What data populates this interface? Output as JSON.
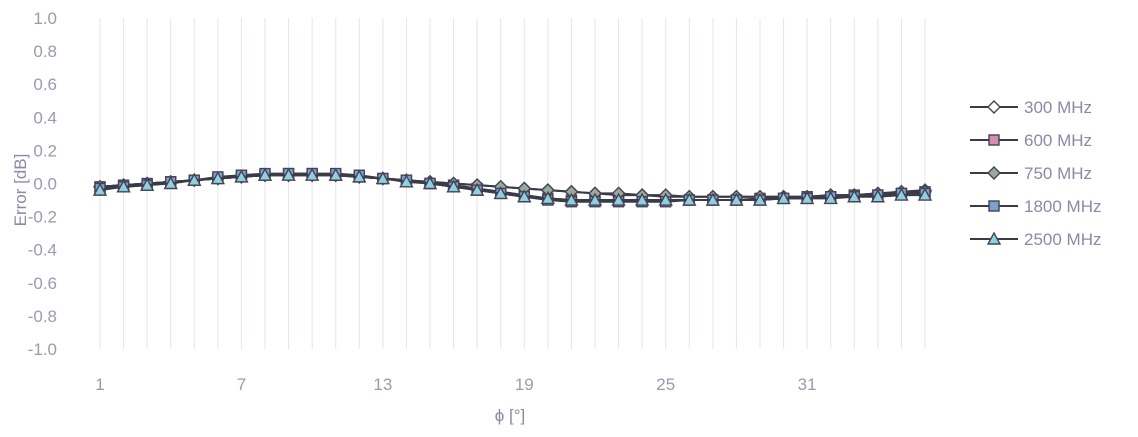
{
  "chart_data": {
    "type": "line",
    "title": "",
    "xlabel": "ϕ [°]",
    "ylabel": "Error [dB]",
    "ylim": [
      -1.0,
      1.0
    ],
    "yticks": [
      "1.0",
      "0.8",
      "0.6",
      "0.4",
      "0.2",
      "0.0",
      "-0.2",
      "-0.4",
      "-0.6",
      "-0.8",
      "-1.0"
    ],
    "xticks": [
      "1",
      "7",
      "13",
      "19",
      "25",
      "31"
    ],
    "grid": "vertical",
    "legend_position": "right",
    "x": [
      1,
      2,
      3,
      4,
      5,
      6,
      7,
      8,
      9,
      10,
      11,
      12,
      13,
      14,
      15,
      16,
      17,
      18,
      19,
      20,
      21,
      22,
      23,
      24,
      25,
      26,
      27,
      28,
      29,
      30,
      31,
      32,
      33,
      34,
      35,
      36
    ],
    "series": [
      {
        "name": "300 MHz",
        "marker": "diamond-open",
        "color": "#555566",
        "values": [
          -0.02,
          -0.01,
          0.0,
          0.01,
          0.02,
          0.03,
          0.04,
          0.05,
          0.05,
          0.05,
          0.05,
          0.04,
          0.03,
          0.02,
          0.01,
          0.0,
          -0.01,
          -0.02,
          -0.03,
          -0.04,
          -0.05,
          -0.06,
          -0.07,
          -0.07,
          -0.08,
          -0.08,
          -0.08,
          -0.08,
          -0.08,
          -0.08,
          -0.08,
          -0.07,
          -0.07,
          -0.06,
          -0.05,
          -0.04
        ]
      },
      {
        "name": "600 MHz",
        "marker": "square",
        "color": "#d98ab0",
        "values": [
          -0.02,
          -0.01,
          0.0,
          0.01,
          0.02,
          0.03,
          0.05,
          0.05,
          0.06,
          0.06,
          0.05,
          0.04,
          0.03,
          0.02,
          0.0,
          -0.01,
          -0.03,
          -0.05,
          -0.07,
          -0.09,
          -0.1,
          -0.1,
          -0.1,
          -0.1,
          -0.1,
          -0.1,
          -0.1,
          -0.1,
          -0.09,
          -0.09,
          -0.08,
          -0.08,
          -0.07,
          -0.07,
          -0.06,
          -0.05
        ]
      },
      {
        "name": "750 MHz",
        "marker": "diamond",
        "color": "#9aaa9a",
        "values": [
          -0.02,
          -0.01,
          0.0,
          0.01,
          0.02,
          0.03,
          0.04,
          0.05,
          0.05,
          0.05,
          0.05,
          0.04,
          0.03,
          0.02,
          0.01,
          0.0,
          -0.01,
          -0.02,
          -0.03,
          -0.04,
          -0.05,
          -0.06,
          -0.06,
          -0.07,
          -0.07,
          -0.08,
          -0.08,
          -0.08,
          -0.08,
          -0.08,
          -0.08,
          -0.07,
          -0.07,
          -0.06,
          -0.05,
          -0.05
        ]
      },
      {
        "name": "1800 MHz",
        "marker": "square",
        "color": "#7f9fd0",
        "values": [
          -0.03,
          -0.02,
          -0.01,
          0.01,
          0.02,
          0.04,
          0.05,
          0.06,
          0.06,
          0.06,
          0.06,
          0.05,
          0.03,
          0.02,
          0.0,
          -0.02,
          -0.04,
          -0.06,
          -0.08,
          -0.1,
          -0.11,
          -0.11,
          -0.11,
          -0.11,
          -0.11,
          -0.1,
          -0.1,
          -0.1,
          -0.1,
          -0.09,
          -0.09,
          -0.08,
          -0.08,
          -0.07,
          -0.06,
          -0.06
        ]
      },
      {
        "name": "2500 MHz",
        "marker": "triangle",
        "color": "#8fd0e0",
        "values": [
          -0.04,
          -0.02,
          -0.01,
          0.0,
          0.02,
          0.03,
          0.04,
          0.05,
          0.05,
          0.05,
          0.05,
          0.04,
          0.03,
          0.01,
          0.0,
          -0.02,
          -0.04,
          -0.06,
          -0.08,
          -0.09,
          -0.1,
          -0.1,
          -0.1,
          -0.1,
          -0.1,
          -0.1,
          -0.1,
          -0.1,
          -0.1,
          -0.09,
          -0.09,
          -0.09,
          -0.08,
          -0.08,
          -0.07,
          -0.07
        ]
      }
    ]
  }
}
